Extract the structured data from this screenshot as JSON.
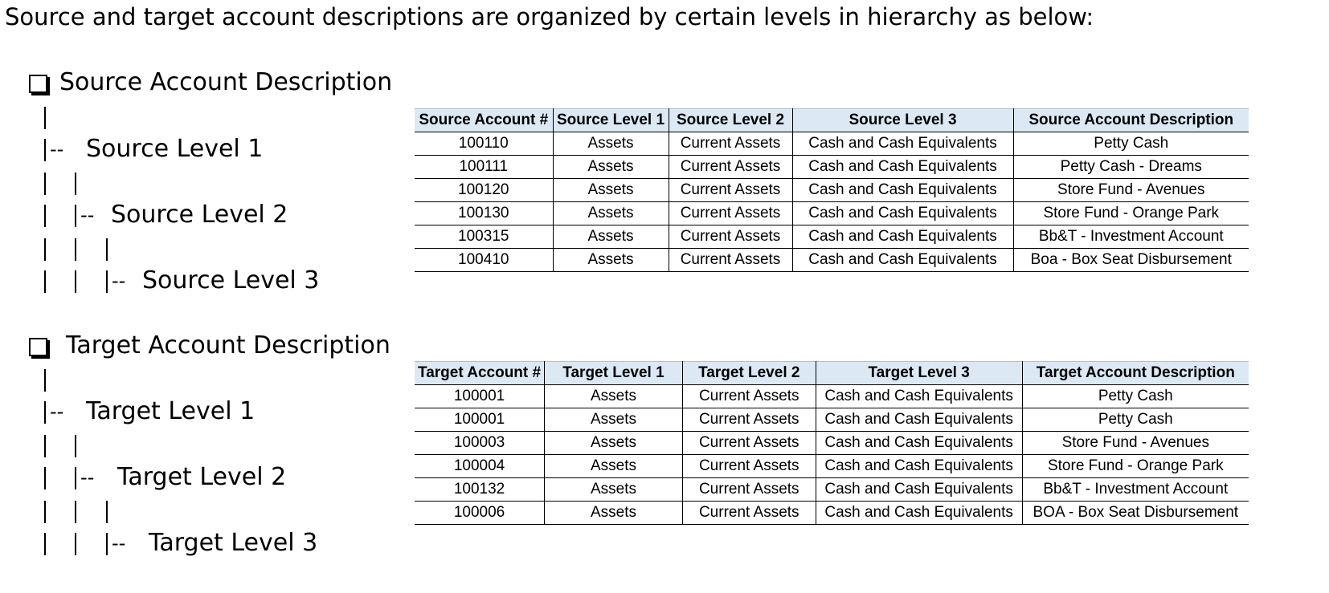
{
  "intro_text": "Source and target account descriptions are organized by certain levels in hierarchy as below:",
  "source_tree": {
    "title": "Source Account Description",
    "level1": "Source Level 1",
    "level2": "Source Level 2",
    "level3": "Source Level 3",
    "connector": "|--"
  },
  "target_tree": {
    "title": "Target Account Description",
    "level1": "Target Level 1",
    "level2": "Target Level 2",
    "level3": "Target Level 3",
    "connector": "|--"
  },
  "source_table": {
    "headers": [
      "Source Account #",
      "Source Level 1",
      "Source Level 2",
      "Source Level 3",
      "Source Account Description"
    ],
    "rows": [
      [
        "100110",
        "Assets",
        "Current Assets",
        "Cash and Cash Equivalents",
        "Petty Cash"
      ],
      [
        "100111",
        "Assets",
        "Current Assets",
        "Cash and Cash Equivalents",
        "Petty Cash - Dreams"
      ],
      [
        "100120",
        "Assets",
        "Current Assets",
        "Cash and Cash Equivalents",
        "Store Fund - Avenues"
      ],
      [
        "100130",
        "Assets",
        "Current Assets",
        "Cash and Cash Equivalents",
        "Store Fund - Orange Park"
      ],
      [
        "100315",
        "Assets",
        "Current Assets",
        "Cash and Cash Equivalents",
        "Bb&T - Investment Account"
      ],
      [
        "100410",
        "Assets",
        "Current Assets",
        "Cash and Cash Equivalents",
        "Boa - Box Seat Disbursement"
      ]
    ]
  },
  "target_table": {
    "headers": [
      "Target Account #",
      "Target Level 1",
      "Target Level 2",
      "Target Level 3",
      "Target Account Description"
    ],
    "rows": [
      [
        "100001",
        "Assets",
        "Current Assets",
        "Cash and Cash Equivalents",
        "Petty Cash"
      ],
      [
        "100001",
        "Assets",
        "Current Assets",
        "Cash and Cash Equivalents",
        "Petty Cash"
      ],
      [
        "100003",
        "Assets",
        "Current Assets",
        "Cash and Cash Equivalents",
        "Store Fund - Avenues"
      ],
      [
        "100004",
        "Assets",
        "Current Assets",
        "Cash and Cash Equivalents",
        "Store Fund - Orange Park"
      ],
      [
        "100132",
        "Assets",
        "Current Assets",
        "Cash and Cash Equivalents",
        "Bb&T - Investment Account"
      ],
      [
        "100006",
        "Assets",
        "Current Assets",
        "Cash and Cash Equivalents",
        "BOA - Box Seat Disbursement"
      ]
    ]
  },
  "colors": {
    "header_fill": "#dce9f5",
    "grid_line": "#000000"
  }
}
